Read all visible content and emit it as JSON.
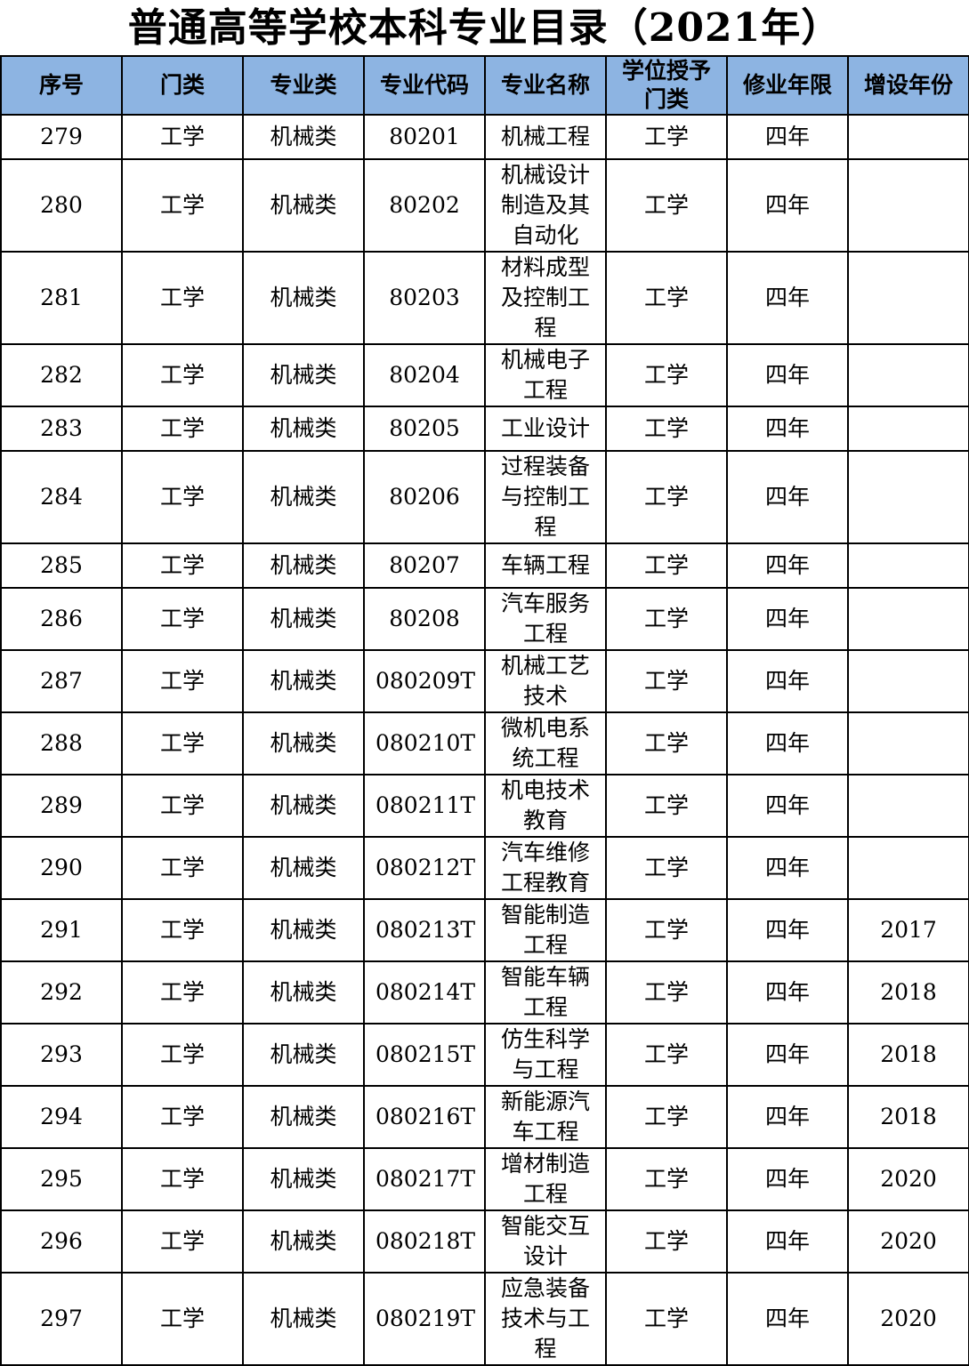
{
  "title": "普通高等学校本科专业目录（2021年）",
  "header_color": "#8db4e2",
  "columns": [
    "序号",
    "门类",
    "专业类",
    "专业代码",
    "专业名称",
    "学位授予门类",
    "修业年限",
    "增设年份"
  ],
  "rows": [
    [
      "279",
      "工学",
      "机械类",
      "80201",
      "机械工程",
      "工学",
      "四年",
      ""
    ],
    [
      "280",
      "工学",
      "机械类",
      "80202",
      "机械设计制造及其自动化",
      "工学",
      "四年",
      ""
    ],
    [
      "281",
      "工学",
      "机械类",
      "80203",
      "材料成型及控制工程",
      "工学",
      "四年",
      ""
    ],
    [
      "282",
      "工学",
      "机械类",
      "80204",
      "机械电子工程",
      "工学",
      "四年",
      ""
    ],
    [
      "283",
      "工学",
      "机械类",
      "80205",
      "工业设计",
      "工学",
      "四年",
      ""
    ],
    [
      "284",
      "工学",
      "机械类",
      "80206",
      "过程装备与控制工程",
      "工学",
      "四年",
      ""
    ],
    [
      "285",
      "工学",
      "机械类",
      "80207",
      "车辆工程",
      "工学",
      "四年",
      ""
    ],
    [
      "286",
      "工学",
      "机械类",
      "80208",
      "汽车服务工程",
      "工学",
      "四年",
      ""
    ],
    [
      "287",
      "工学",
      "机械类",
      "080209T",
      "机械工艺技术",
      "工学",
      "四年",
      ""
    ],
    [
      "288",
      "工学",
      "机械类",
      "080210T",
      "微机电系统工程",
      "工学",
      "四年",
      ""
    ],
    [
      "289",
      "工学",
      "机械类",
      "080211T",
      "机电技术教育",
      "工学",
      "四年",
      ""
    ],
    [
      "290",
      "工学",
      "机械类",
      "080212T",
      "汽车维修工程教育",
      "工学",
      "四年",
      ""
    ],
    [
      "291",
      "工学",
      "机械类",
      "080213T",
      "智能制造工程",
      "工学",
      "四年",
      "2017"
    ],
    [
      "292",
      "工学",
      "机械类",
      "080214T",
      "智能车辆工程",
      "工学",
      "四年",
      "2018"
    ],
    [
      "293",
      "工学",
      "机械类",
      "080215T",
      "仿生科学与工程",
      "工学",
      "四年",
      "2018"
    ],
    [
      "294",
      "工学",
      "机械类",
      "080216T",
      "新能源汽车工程",
      "工学",
      "四年",
      "2018"
    ],
    [
      "295",
      "工学",
      "机械类",
      "080217T",
      "增材制造工程",
      "工学",
      "四年",
      "2020"
    ],
    [
      "296",
      "工学",
      "机械类",
      "080218T",
      "智能交互设计",
      "工学",
      "四年",
      "2020"
    ],
    [
      "297",
      "工学",
      "机械类",
      "080219T",
      "应急装备技术与工程",
      "工学",
      "四年",
      "2020"
    ]
  ]
}
